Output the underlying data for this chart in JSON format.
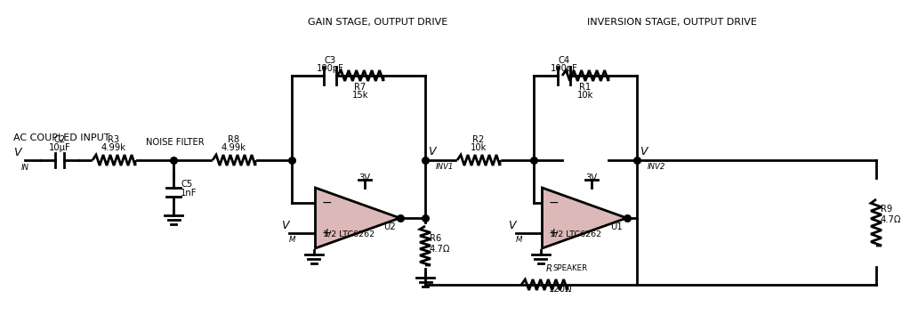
{
  "bg_color": "#ffffff",
  "line_color": "#000000",
  "lw": 2.0,
  "op_amp_fill": "#ddb8b8",
  "gain_stage_label": "GAIN STAGE, OUTPUT DRIVE",
  "inv_stage_label": "INVERSION STAGE, OUTPUT DRIVE",
  "ac_input_label": "AC COUPLED INPUT",
  "noise_filter_label": "NOISE FILTER",
  "c2_label": "C2",
  "c2_val": "10μF",
  "r3_label": "R3",
  "r3_val": "4.99k",
  "r8_label": "R8",
  "r8_val": "4.99k",
  "c5_label": "C5",
  "c5_val": "1nF",
  "r7_label": "R7",
  "r7_val": "15k",
  "c3_label": "C3",
  "c3_val": "100pF",
  "r2_label": "R2",
  "r2_val": "10k",
  "r1_label": "R1",
  "r1_val": "10k",
  "c4_label": "C4",
  "c4_val": "100pF",
  "r6_label": "R6",
  "r6_val": "4.7Ω",
  "r9_label": "R9",
  "r9_val": "4.7Ω",
  "rspeaker_label": "RSPEAKER",
  "rspeaker_val": "120Ω",
  "u2_label": "U2",
  "u1_label": "U1",
  "ltc_label": "1/2 LTC6262",
  "supply_3v": "3V",
  "vin_label": "V",
  "vin_sub": "IN",
  "vinv1_label": "V",
  "vinv1_sub": "INV1",
  "vinv2_label": "V",
  "vinv2_sub": "INV2",
  "vm_label": "V",
  "vm_sub": "M"
}
